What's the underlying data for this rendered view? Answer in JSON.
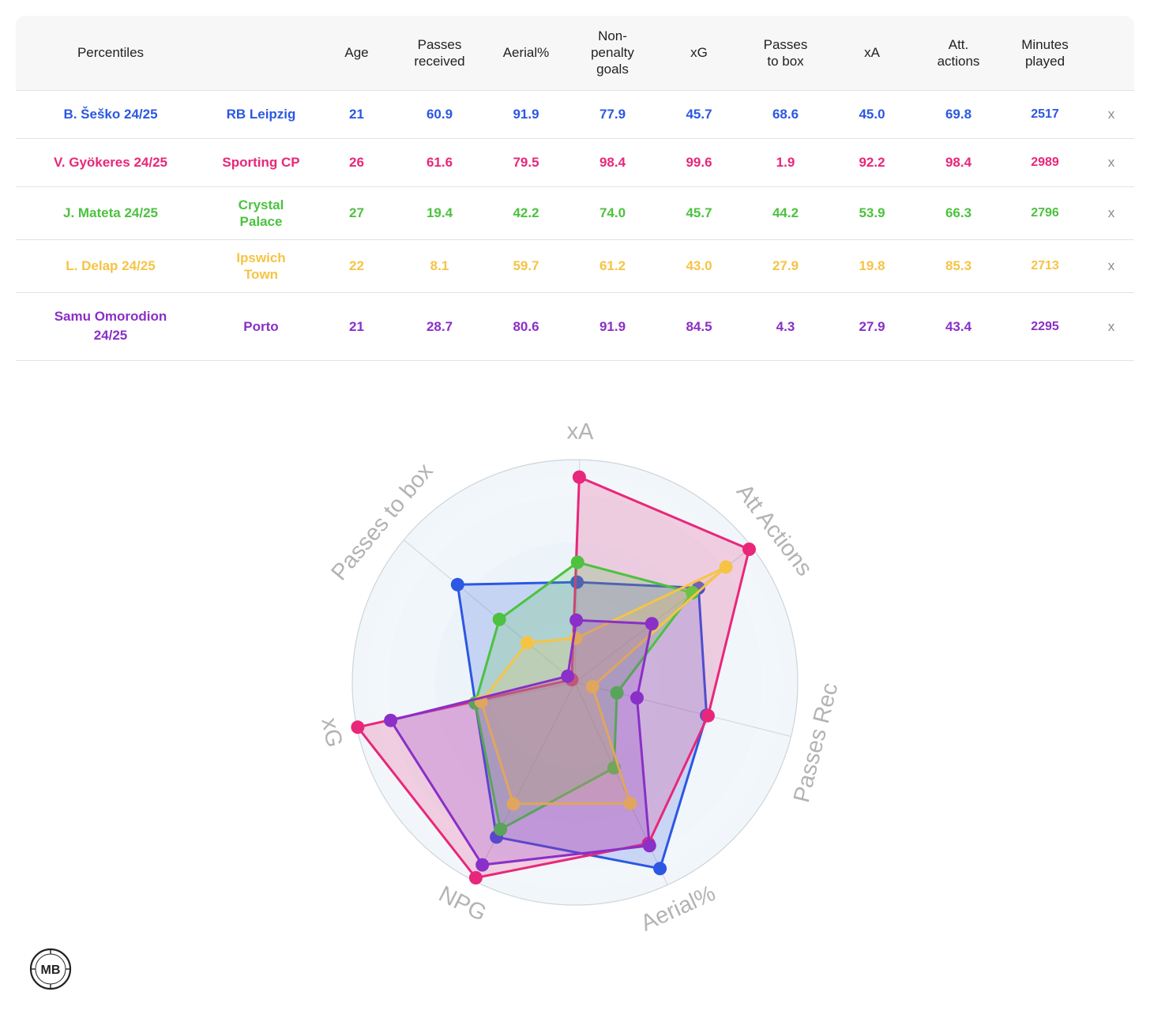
{
  "table": {
    "headers": {
      "percentiles": "Percentiles",
      "team": "",
      "age": "Age",
      "passes_received": [
        "Passes",
        "received"
      ],
      "aerial": "Aerial%",
      "npg": [
        "Non-",
        "penalty",
        "goals"
      ],
      "xg": "xG",
      "passes_to_box": [
        "Passes",
        "to box"
      ],
      "xa": "xA",
      "att_actions": [
        "Att.",
        "actions"
      ],
      "minutes": [
        "Minutes",
        "played"
      ],
      "remove": ""
    },
    "rows": [
      {
        "player": "B. Šeško 24/25",
        "team": "RB Leipzig",
        "age": "21",
        "passes_received": "60.9",
        "aerial": "91.9",
        "npg": "77.9",
        "xg": "45.7",
        "passes_to_box": "68.6",
        "xa": "45.0",
        "att_actions": "69.8",
        "minutes": "2517",
        "remove": "x",
        "color": "#2b57e3"
      },
      {
        "player": "V. Gyökeres 24/25",
        "team": "Sporting CP",
        "age": "26",
        "passes_received": "61.6",
        "aerial": "79.5",
        "npg": "98.4",
        "xg": "99.6",
        "passes_to_box": "1.9",
        "xa": "92.2",
        "att_actions": "98.4",
        "minutes": "2989",
        "remove": "x",
        "color": "#e8277a"
      },
      {
        "player": "J. Mateta 24/25",
        "team": "Crystal Palace",
        "age": "27",
        "passes_received": "19.4",
        "aerial": "42.2",
        "npg": "74.0",
        "xg": "45.7",
        "passes_to_box": "44.2",
        "xa": "53.9",
        "att_actions": "66.3",
        "minutes": "2796",
        "remove": "x",
        "color": "#4cc23f"
      },
      {
        "player": "L. Delap 24/25",
        "team": "Ipswich Town",
        "age": "22",
        "passes_received": "8.1",
        "aerial": "59.7",
        "npg": "61.2",
        "xg": "43.0",
        "passes_to_box": "27.9",
        "xa": "19.8",
        "att_actions": "85.3",
        "minutes": "2713",
        "remove": "x",
        "color": "#f6c445"
      },
      {
        "player": "Samu Omorodion 24/25",
        "team": "Porto",
        "age": "21",
        "passes_received": "28.7",
        "aerial": "80.6",
        "npg": "91.9",
        "xg": "84.5",
        "passes_to_box": "4.3",
        "xa": "27.9",
        "att_actions": "43.4",
        "minutes": "2295",
        "remove": "x",
        "color": "#8a2fc7"
      }
    ]
  },
  "chart_data": {
    "type": "radar",
    "axes": [
      "xA",
      "Att Actions",
      "Passes Rec",
      "Aerial%",
      "NPG",
      "xG",
      "Passes to box"
    ],
    "range": [
      0,
      100
    ],
    "series": [
      {
        "name": "B. Šeško 24/25",
        "color": "#2b57e3",
        "values": [
          45.0,
          69.8,
          60.9,
          91.9,
          77.9,
          45.7,
          68.6
        ]
      },
      {
        "name": "V. Gyökeres 24/25",
        "color": "#e8277a",
        "values": [
          92.2,
          98.4,
          61.6,
          79.5,
          98.4,
          99.6,
          1.9
        ]
      },
      {
        "name": "J. Mateta 24/25",
        "color": "#4cc23f",
        "values": [
          53.9,
          66.3,
          19.4,
          42.2,
          74.0,
          45.7,
          44.2
        ]
      },
      {
        "name": "L. Delap 24/25",
        "color": "#f6c445",
        "values": [
          19.8,
          85.3,
          8.1,
          59.7,
          61.2,
          43.0,
          27.9
        ]
      },
      {
        "name": "Samu Omorodion 24/25",
        "color": "#8a2fc7",
        "values": [
          27.9,
          43.4,
          28.7,
          80.6,
          91.9,
          84.5,
          4.3
        ]
      }
    ]
  },
  "logo": {
    "text": "MB"
  }
}
